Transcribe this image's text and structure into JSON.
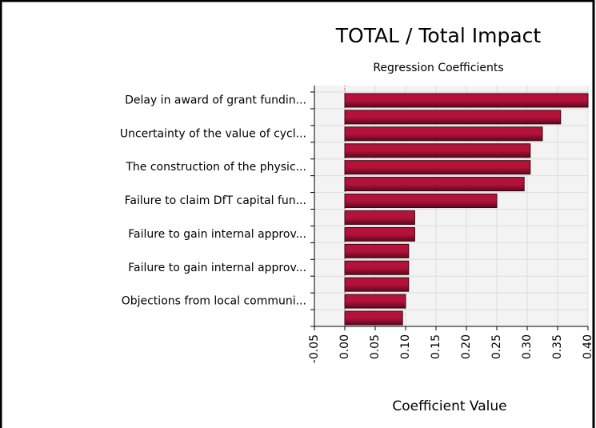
{
  "chart_data": {
    "type": "bar",
    "orientation": "horizontal",
    "title": "TOTAL / Total Impact",
    "subtitle": "Regression Coefficients",
    "x_label": "Coefficient Value",
    "categories": [
      "Delay in award of grant fundin...",
      null,
      "Uncertainty of the value of cycl...",
      null,
      "The construction of the physic...",
      null,
      "Failure to claim DfT capital fun...",
      null,
      "Failure to gain internal approv...",
      null,
      "Failure to gain internal approv...",
      null,
      "Objections from local communi...",
      null
    ],
    "values": [
      0.4,
      0.355,
      0.325,
      0.305,
      0.305,
      0.295,
      0.25,
      0.115,
      0.115,
      0.105,
      0.105,
      0.105,
      0.1,
      0.095
    ],
    "color": "#b5123a",
    "xlim": [
      -0.05,
      0.4
    ],
    "xticks": [
      -0.05,
      {
        "value": 0,
        "label": "0.00"
      },
      0.05,
      {
        "value": 0.1,
        "label": "0.10"
      },
      0.15,
      {
        "value": 0.2,
        "label": "0.20"
      },
      0.25,
      {
        "value": 0.3,
        "label": "0.30"
      },
      0.35,
      {
        "value": 0.4,
        "label": "0.40"
      }
    ],
    "grid": true
  }
}
